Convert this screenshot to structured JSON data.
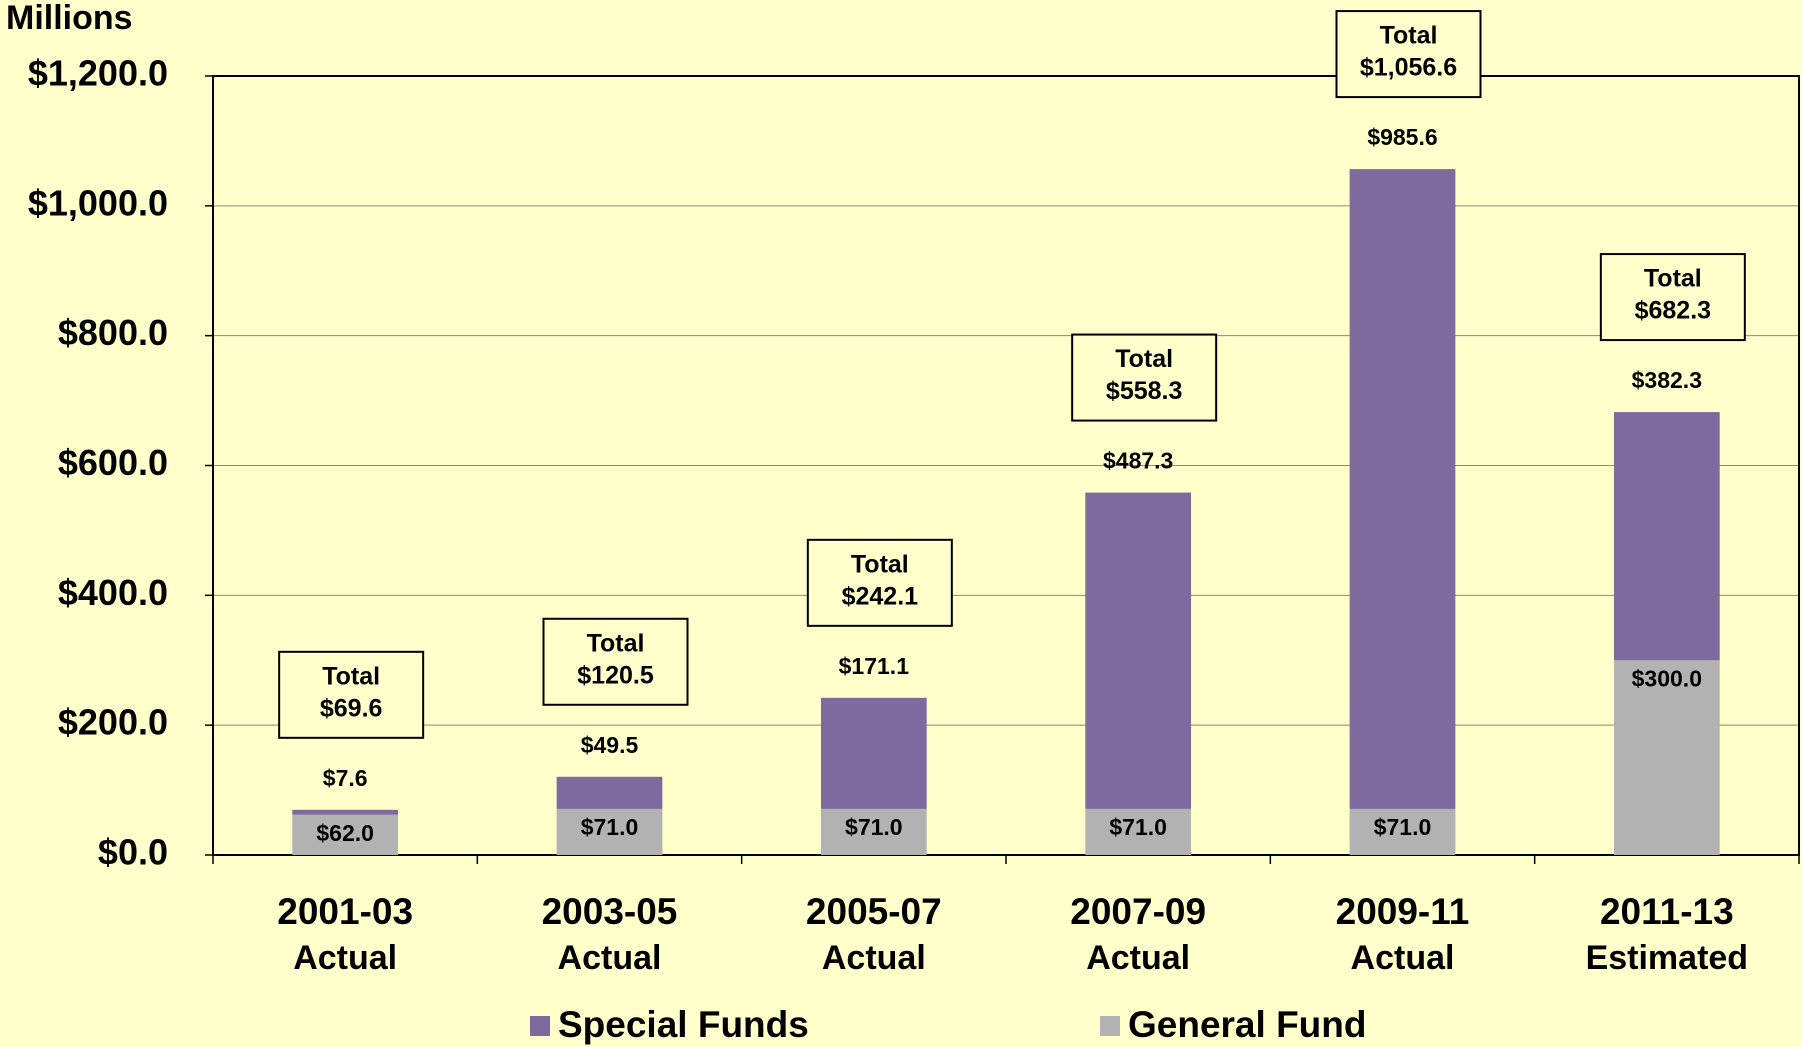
{
  "chart_data": {
    "type": "stacked_bar",
    "y_axis_label": "Millions",
    "categories": [
      "2001-03",
      "2003-05",
      "2005-07",
      "2007-09",
      "2009-11",
      "2011-13"
    ],
    "category_sublabels": [
      "Actual",
      "Actual",
      "Actual",
      "Actual",
      "Actual",
      "Estimated"
    ],
    "series": [
      {
        "name": "General Fund",
        "color": "#b2b2b2",
        "values": [
          62.0,
          71.0,
          71.0,
          71.0,
          71.0,
          300.0
        ],
        "value_labels": [
          "$62.0",
          "$71.0",
          "$71.0",
          "$71.0",
          "$71.0",
          "$300.0"
        ]
      },
      {
        "name": "Special Funds",
        "color": "#7f6a9f",
        "values": [
          7.6,
          49.5,
          171.1,
          487.3,
          985.6,
          382.3
        ],
        "value_labels": [
          "$7.6",
          "$49.5",
          "$171.1",
          "$487.3",
          "$985.6",
          "$382.3"
        ]
      }
    ],
    "totals": {
      "label": "Total",
      "values": [
        69.6,
        120.5,
        242.1,
        558.3,
        1056.6,
        682.3
      ],
      "value_labels": [
        "$69.6",
        "$120.5",
        "$242.1",
        "$558.3",
        "$1,056.6",
        "$682.3"
      ]
    },
    "ylim": [
      0,
      1200
    ],
    "yticks": [
      {
        "value": 0,
        "label": "$0.0"
      },
      {
        "value": 200,
        "label": "$200.0"
      },
      {
        "value": 400,
        "label": "$400.0"
      },
      {
        "value": 600,
        "label": "$600.0"
      },
      {
        "value": 800,
        "label": "$800.0"
      },
      {
        "value": 1000,
        "label": "$1,000.0"
      },
      {
        "value": 1200,
        "label": "$1,200.0"
      }
    ],
    "grid": true,
    "legend_position": "bottom"
  }
}
